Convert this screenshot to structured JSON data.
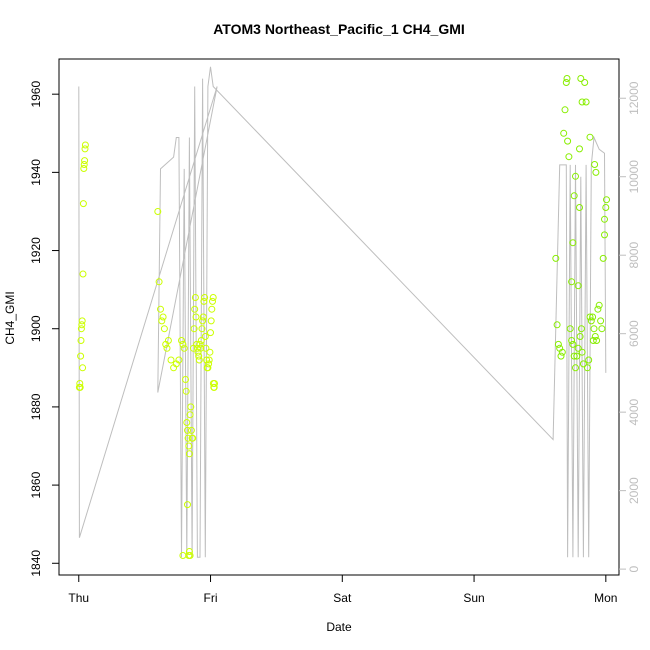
{
  "chart_data": {
    "type": "scatter",
    "title": "ATOM3 Northeast_Pacific_1 CH4_GMI",
    "xlabel": "Date",
    "ylabel": "CH4_GMI",
    "x_ticks": [
      "Thu",
      "Fri",
      "Sat",
      "Sun",
      "Mon"
    ],
    "x_range_days": [
      -0.15,
      4.1
    ],
    "y_left": {
      "ticks": [
        1840,
        1860,
        1880,
        1900,
        1920,
        1940,
        1960
      ],
      "range": [
        1837,
        1969
      ]
    },
    "y_right": {
      "ticks": [
        0,
        2000,
        4000,
        6000,
        8000,
        10000,
        12000
      ],
      "range": [
        -150,
        13000
      ]
    },
    "grid": false,
    "colors": {
      "points_thu_fri": "#ccff00",
      "points_mon": "#88ee00",
      "altitude_line": "#bebebe",
      "axis": "#000000"
    },
    "series": [
      {
        "kind": "points",
        "axis": "left",
        "points": [
          [
            0.005,
            1885
          ],
          [
            0.008,
            1886
          ],
          [
            0.011,
            1885
          ],
          [
            0.014,
            1893
          ],
          [
            0.017,
            1897
          ],
          [
            0.02,
            1900
          ],
          [
            0.023,
            1901
          ],
          [
            0.026,
            1902
          ],
          [
            0.029,
            1890
          ],
          [
            0.032,
            1914
          ],
          [
            0.035,
            1932
          ],
          [
            0.038,
            1941
          ],
          [
            0.041,
            1942
          ],
          [
            0.044,
            1943
          ],
          [
            0.047,
            1946
          ],
          [
            0.05,
            1947
          ],
          [
            0.6,
            1930
          ],
          [
            0.61,
            1912
          ],
          [
            0.62,
            1905
          ],
          [
            0.63,
            1902
          ],
          [
            0.64,
            1903
          ],
          [
            0.65,
            1900
          ],
          [
            0.66,
            1896
          ],
          [
            0.67,
            1895
          ],
          [
            0.68,
            1897
          ],
          [
            0.7,
            1892
          ],
          [
            0.72,
            1890
          ],
          [
            0.74,
            1891
          ],
          [
            0.76,
            1892
          ],
          [
            0.78,
            1897
          ],
          [
            0.79,
            1896
          ],
          [
            0.8,
            1895
          ],
          [
            0.81,
            1887
          ],
          [
            0.815,
            1884
          ],
          [
            0.82,
            1876
          ],
          [
            0.825,
            1874
          ],
          [
            0.83,
            1872
          ],
          [
            0.835,
            1870
          ],
          [
            0.84,
            1868
          ],
          [
            0.845,
            1878
          ],
          [
            0.85,
            1880
          ],
          [
            0.855,
            1874
          ],
          [
            0.86,
            1872
          ],
          [
            0.865,
            1872
          ],
          [
            0.87,
            1895
          ],
          [
            0.875,
            1900
          ],
          [
            0.88,
            1905
          ],
          [
            0.885,
            1908
          ],
          [
            0.89,
            1903
          ],
          [
            0.895,
            1896
          ],
          [
            0.9,
            1895
          ],
          [
            0.905,
            1894
          ],
          [
            0.91,
            1893
          ],
          [
            0.915,
            1892
          ],
          [
            0.92,
            1896
          ],
          [
            0.925,
            1895
          ],
          [
            0.93,
            1897
          ],
          [
            0.935,
            1900
          ],
          [
            0.94,
            1902
          ],
          [
            0.945,
            1903
          ],
          [
            0.95,
            1907
          ],
          [
            0.955,
            1908
          ],
          [
            0.96,
            1898
          ],
          [
            0.965,
            1895
          ],
          [
            0.97,
            1892
          ],
          [
            0.975,
            1890
          ],
          [
            0.98,
            1890
          ],
          [
            0.985,
            1891
          ],
          [
            0.99,
            1892
          ],
          [
            0.995,
            1894
          ],
          [
            1.0,
            1899
          ],
          [
            1.005,
            1902
          ],
          [
            1.01,
            1905
          ],
          [
            1.015,
            1907
          ],
          [
            1.02,
            1908
          ],
          [
            1.022,
            1886
          ],
          [
            1.025,
            1885
          ],
          [
            1.028,
            1885
          ],
          [
            1.03,
            1886
          ],
          [
            0.825,
            1855
          ],
          [
            0.835,
            1842
          ],
          [
            0.84,
            1843
          ],
          [
            0.845,
            1842
          ],
          [
            0.79,
            1842
          ],
          [
            3.62,
            1918
          ],
          [
            3.63,
            1901
          ],
          [
            3.64,
            1896
          ],
          [
            3.65,
            1895
          ],
          [
            3.66,
            1893
          ],
          [
            3.67,
            1894
          ],
          [
            3.68,
            1950
          ],
          [
            3.69,
            1956
          ],
          [
            3.7,
            1963
          ],
          [
            3.705,
            1964
          ],
          [
            3.71,
            1948
          ],
          [
            3.72,
            1944
          ],
          [
            3.73,
            1900
          ],
          [
            3.74,
            1897
          ],
          [
            3.75,
            1896
          ],
          [
            3.76,
            1893
          ],
          [
            3.77,
            1890
          ],
          [
            3.78,
            1893
          ],
          [
            3.79,
            1895
          ],
          [
            3.8,
            1946
          ],
          [
            3.805,
            1898
          ],
          [
            3.81,
            1964
          ],
          [
            3.815,
            1900
          ],
          [
            3.82,
            1894
          ],
          [
            3.83,
            1891
          ],
          [
            3.84,
            1963
          ],
          [
            3.85,
            1958
          ],
          [
            3.86,
            1890
          ],
          [
            3.87,
            1892
          ],
          [
            3.88,
            1903
          ],
          [
            3.89,
            1902
          ],
          [
            3.9,
            1903
          ],
          [
            3.91,
            1900
          ],
          [
            3.92,
            1898
          ],
          [
            3.93,
            1897
          ],
          [
            3.94,
            1905
          ],
          [
            3.95,
            1906
          ],
          [
            3.96,
            1902
          ],
          [
            3.97,
            1900
          ],
          [
            3.98,
            1918
          ],
          [
            3.99,
            1928
          ],
          [
            4.0,
            1931
          ],
          [
            4.005,
            1933
          ],
          [
            3.99,
            1924
          ],
          [
            3.905,
            1897
          ],
          [
            3.915,
            1942
          ],
          [
            3.925,
            1940
          ],
          [
            3.88,
            1949
          ],
          [
            3.74,
            1912
          ],
          [
            3.75,
            1922
          ],
          [
            3.76,
            1934
          ],
          [
            3.77,
            1939
          ],
          [
            3.79,
            1911
          ],
          [
            3.8,
            1931
          ],
          [
            3.82,
            1958
          ]
        ]
      },
      {
        "kind": "line",
        "axis": "right",
        "points": [
          [
            0.0,
            12300
          ],
          [
            0.005,
            800
          ],
          [
            1.05,
            12300
          ],
          [
            0.6,
            4500
          ],
          [
            0.62,
            10200
          ],
          [
            0.72,
            10500
          ],
          [
            0.74,
            11000
          ],
          [
            0.76,
            11000
          ],
          [
            0.78,
            300
          ],
          [
            0.8,
            10200
          ],
          [
            0.82,
            300
          ],
          [
            0.84,
            11000
          ],
          [
            0.86,
            300
          ],
          [
            0.88,
            12300
          ],
          [
            0.9,
            300
          ],
          [
            0.92,
            300
          ],
          [
            0.94,
            12500
          ],
          [
            0.96,
            300
          ],
          [
            0.98,
            12300
          ],
          [
            1.0,
            12800
          ],
          [
            1.02,
            12300
          ],
          [
            3.6,
            3300
          ],
          [
            3.65,
            10300
          ],
          [
            3.7,
            10300
          ],
          [
            3.71,
            300
          ],
          [
            3.73,
            10300
          ],
          [
            3.75,
            300
          ],
          [
            3.77,
            10300
          ],
          [
            3.79,
            300
          ],
          [
            3.81,
            10000
          ],
          [
            3.83,
            300
          ],
          [
            3.85,
            10300
          ],
          [
            3.87,
            300
          ],
          [
            3.89,
            10300
          ],
          [
            3.91,
            11000
          ],
          [
            3.95,
            10700
          ],
          [
            3.99,
            10600
          ],
          [
            4.0,
            5000
          ]
        ]
      }
    ]
  }
}
